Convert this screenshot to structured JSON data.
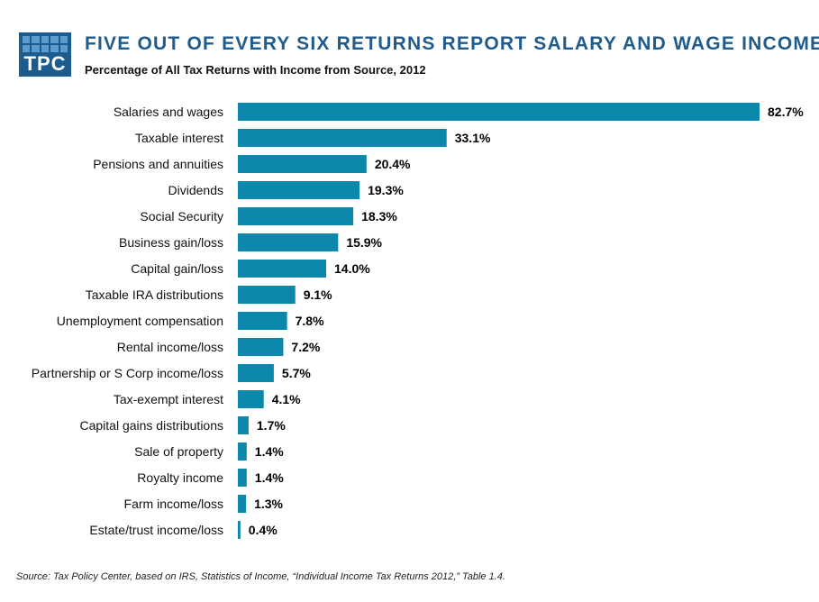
{
  "logo": {
    "text": "TPC"
  },
  "title": "FIVE OUT OF EVERY SIX RETURNS REPORT SALARY AND WAGE INCOME",
  "subtitle": "Percentage of All Tax Returns with Income from Source, 2012",
  "source": "Source: Tax Policy Center,  based on IRS, Statistics of Income, “Individual Income Tax Returns 2012,” Table 1.4.",
  "colors": {
    "bar": "#0a87aa",
    "title": "#1f5b8c",
    "logo_bg": "#1b5b8e",
    "logo_grid": "#5b9bd0"
  },
  "chart_data": {
    "type": "bar",
    "orientation": "horizontal",
    "categories": [
      "Salaries and wages",
      "Taxable interest",
      "Pensions and annuities",
      "Dividends",
      "Social Security",
      "Business gain/loss",
      "Capital gain/loss",
      "Taxable IRA distributions",
      "Unemployment compensation",
      "Rental income/loss",
      "Partnership or S Corp income/loss",
      "Tax-exempt interest",
      "Capital gains distributions",
      "Sale of property",
      "Royalty income",
      "Farm income/loss",
      "Estate/trust income/loss"
    ],
    "values": [
      82.7,
      33.1,
      20.4,
      19.3,
      18.3,
      15.9,
      14.0,
      9.1,
      7.8,
      7.2,
      5.7,
      4.1,
      1.7,
      1.4,
      1.4,
      1.3,
      0.4
    ],
    "value_labels": [
      "82.7%",
      "33.1%",
      "20.4%",
      "19.3%",
      "18.3%",
      "15.9%",
      "14.0%",
      "9.1%",
      "7.8%",
      "7.2%",
      "5.7%",
      "4.1%",
      "1.7%",
      "1.4%",
      "1.4%",
      "1.3%",
      "0.4%"
    ],
    "xlim": [
      0,
      82.7
    ],
    "grid": false,
    "legend": "none"
  }
}
